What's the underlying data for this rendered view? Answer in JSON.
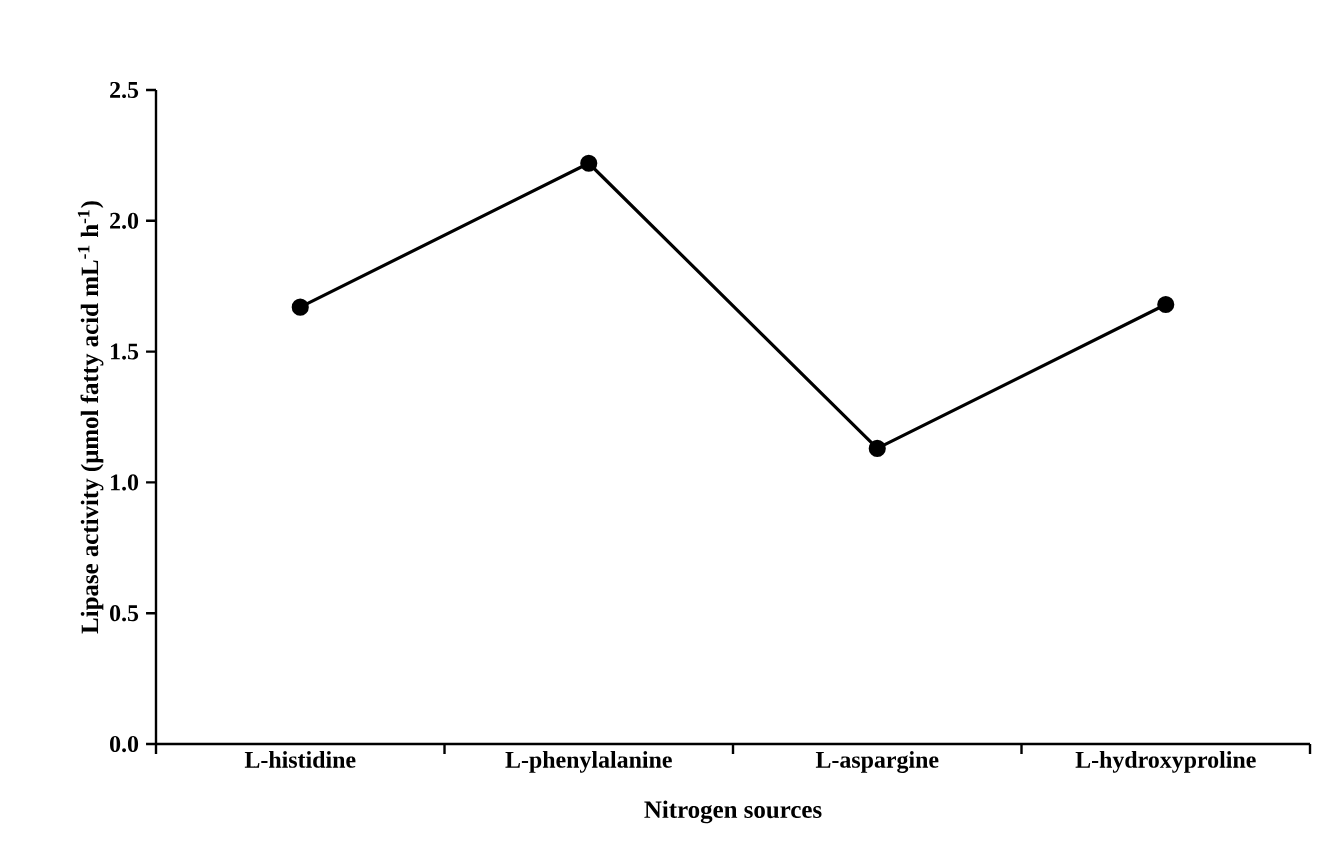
{
  "chart_data": {
    "type": "line",
    "xlabel": "Nitrogen sources",
    "ylabel": "Lipase activity (μmol fatty acid mL$^{-1}$ h$^{-1}$)",
    "categories": [
      "L-histidine",
      "L-phenylalanine",
      "L-aspargine",
      "L-hydroxyproline"
    ],
    "values": [
      1.67,
      2.22,
      1.13,
      1.68
    ],
    "color": "#000000",
    "marker": "circle",
    "line_style": "solid",
    "grid": false,
    "ylim": [
      0,
      2.5
    ],
    "yticks": [
      {
        "value": 0,
        "label": "0.0"
      },
      {
        "value": 0.5,
        "label": "0.5"
      },
      {
        "value": 1,
        "label": "1.0"
      },
      {
        "value": 1.5,
        "label": "1.5"
      },
      {
        "value": 2,
        "label": "2.0"
      },
      {
        "value": 2.5,
        "label": "2.5"
      }
    ]
  }
}
